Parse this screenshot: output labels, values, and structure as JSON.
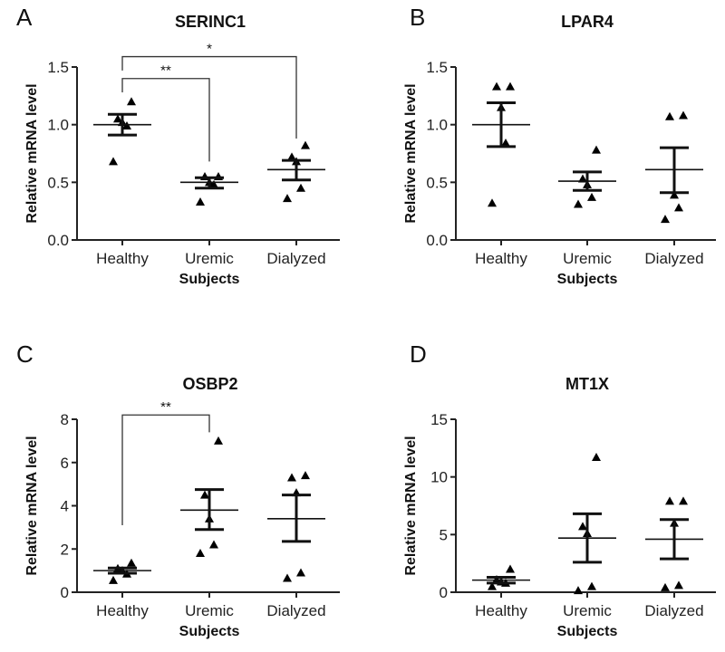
{
  "chart_data": [
    {
      "type": "scatter",
      "panel": "A",
      "title": "SERINC1",
      "xlabel": "Subjects",
      "ylabel": "Relative mRNA level",
      "categories": [
        "Healthy",
        "Uremic",
        "Dialyzed"
      ],
      "ylim": [
        0,
        1.5
      ],
      "yticks": [
        "0.0",
        "0.5",
        "1.0",
        "1.5"
      ],
      "ytick_values": [
        0,
        0.5,
        1.0,
        1.5
      ],
      "points": [
        [
          1.2,
          1.05,
          1.02,
          0.99,
          0.68
        ],
        [
          0.55,
          0.55,
          0.5,
          0.48,
          0.33
        ],
        [
          0.82,
          0.72,
          0.68,
          0.45,
          0.36
        ]
      ],
      "mean": [
        1.0,
        0.5,
        0.61
      ],
      "sem_low": [
        0.91,
        0.45,
        0.52
      ],
      "sem_high": [
        1.09,
        0.54,
        0.69
      ],
      "significance": [
        {
          "from": 0,
          "to": 1,
          "label": "**",
          "top": 1.4,
          "from_drop": 1.28,
          "to_drop": 0.68
        },
        {
          "from": 0,
          "to": 2,
          "label": "*",
          "top": 1.59,
          "from_drop": 1.47,
          "to_drop": 0.88
        }
      ]
    },
    {
      "type": "scatter",
      "panel": "B",
      "title": "LPAR4",
      "xlabel": "Subjects",
      "ylabel": "Relative mRNA level",
      "categories": [
        "Healthy",
        "Uremic",
        "Dialyzed"
      ],
      "ylim": [
        0,
        1.5
      ],
      "yticks": [
        "0.0",
        "0.5",
        "1.0",
        "1.5"
      ],
      "ytick_values": [
        0,
        0.5,
        1.0,
        1.5
      ],
      "points": [
        [
          1.33,
          1.33,
          1.15,
          0.84,
          0.32
        ],
        [
          0.78,
          0.53,
          0.48,
          0.37,
          0.31
        ],
        [
          1.08,
          1.07,
          0.39,
          0.28,
          0.18
        ]
      ],
      "mean": [
        1.0,
        0.51,
        0.61
      ],
      "sem_low": [
        0.81,
        0.43,
        0.41
      ],
      "sem_high": [
        1.19,
        0.59,
        0.8
      ],
      "significance": []
    },
    {
      "type": "scatter",
      "panel": "C",
      "title": "OSBP2",
      "xlabel": "Subjects",
      "ylabel": "Relative mRNA level",
      "categories": [
        "Healthy",
        "Uremic",
        "Dialyzed"
      ],
      "ylim": [
        0,
        8
      ],
      "yticks": [
        "0",
        "2",
        "4",
        "6",
        "8"
      ],
      "ytick_values": [
        0,
        2,
        4,
        6,
        8
      ],
      "points": [
        [
          1.35,
          1.1,
          1.0,
          0.85,
          0.55
        ],
        [
          7.0,
          4.5,
          3.4,
          2.2,
          1.8
        ],
        [
          5.4,
          5.3,
          4.6,
          0.9,
          0.65
        ]
      ],
      "mean": [
        1.0,
        3.8,
        3.4
      ],
      "sem_low": [
        0.88,
        2.9,
        2.35
      ],
      "sem_high": [
        1.12,
        4.75,
        4.5
      ],
      "significance": [
        {
          "from": 0,
          "to": 1,
          "label": "**",
          "top": 8.2,
          "from_drop": 3.1,
          "to_drop": 7.4
        }
      ]
    },
    {
      "type": "scatter",
      "panel": "D",
      "title": "MT1X",
      "xlabel": "Subjects",
      "ylabel": "Relative mRNA level",
      "categories": [
        "Healthy",
        "Uremic",
        "Dialyzed"
      ],
      "ylim": [
        0,
        15
      ],
      "yticks": [
        "0",
        "5",
        "10",
        "15"
      ],
      "ytick_values": [
        0,
        5,
        10,
        15
      ],
      "points": [
        [
          2.0,
          1.1,
          0.9,
          0.8,
          0.5
        ],
        [
          11.7,
          5.7,
          5.1,
          0.5,
          0.15
        ],
        [
          7.9,
          7.9,
          6.0,
          0.6,
          0.4
        ]
      ],
      "mean": [
        1.05,
        4.7,
        4.6
      ],
      "sem_low": [
        0.8,
        2.6,
        2.9
      ],
      "sem_high": [
        1.3,
        6.8,
        6.3
      ],
      "significance": []
    }
  ]
}
